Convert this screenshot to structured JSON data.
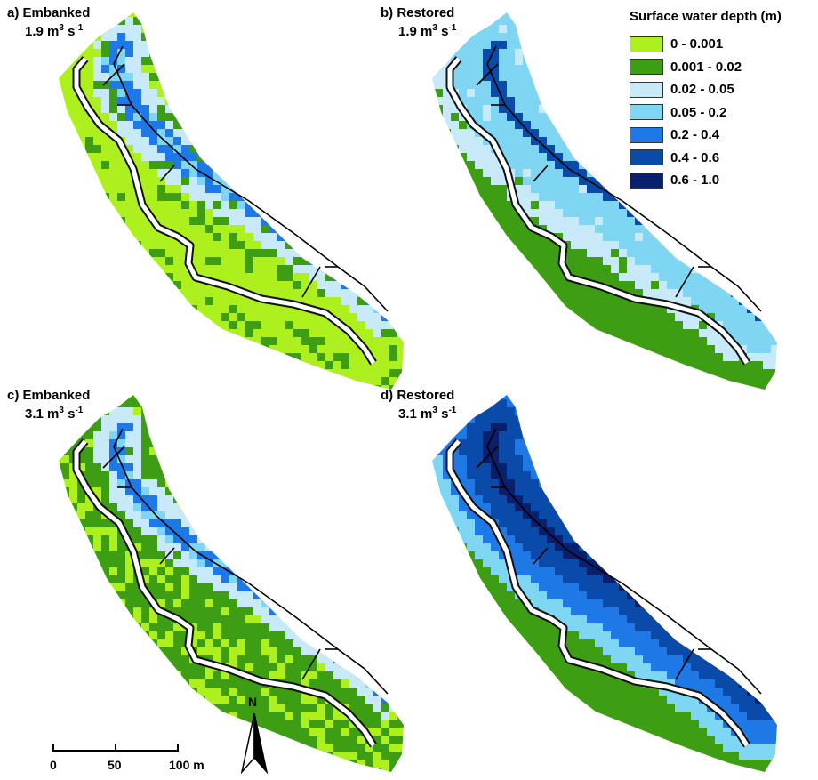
{
  "panels": [
    {
      "id": "a",
      "label": "a) Embanked",
      "flow_value": "1.9",
      "flow_unit": "m",
      "flow_exp1": "3",
      "flow_s": "s",
      "flow_exp2": "-1",
      "scenario": "embanked-low"
    },
    {
      "id": "b",
      "label": "b) Restored",
      "flow_value": "1.9",
      "flow_unit": "m",
      "flow_exp1": "3",
      "flow_s": "s",
      "flow_exp2": "-1",
      "scenario": "restored-low"
    },
    {
      "id": "c",
      "label": "c) Embanked",
      "flow_value": "3.1",
      "flow_unit": "m",
      "flow_exp1": "3",
      "flow_s": "s",
      "flow_exp2": "-1",
      "scenario": "embanked-high"
    },
    {
      "id": "d",
      "label": "d) Restored",
      "flow_value": "3.1",
      "flow_unit": "m",
      "flow_exp1": "3",
      "flow_s": "s",
      "flow_exp2": "-1",
      "scenario": "restored-high"
    }
  ],
  "legend": {
    "title": "Surface water depth (m)",
    "classes": [
      {
        "label": "0 - 0.001",
        "color": "#aef01e"
      },
      {
        "label": "0.001 - 0.02",
        "color": "#3d9e14"
      },
      {
        "label": "0.02 - 0.05",
        "color": "#c7e9f8"
      },
      {
        "label": "0.05 - 0.2",
        "color": "#7fd6f2"
      },
      {
        "label": "0.2 - 0.4",
        "color": "#1e78e6"
      },
      {
        "label": "0.4 - 0.6",
        "color": "#0a4aa8"
      },
      {
        "label": "0.6 - 1.0",
        "color": "#0a1f6e"
      }
    ]
  },
  "scale_bar": {
    "labels": [
      "0",
      "50",
      "100 m"
    ]
  },
  "north_arrow": {
    "label": "N"
  }
}
